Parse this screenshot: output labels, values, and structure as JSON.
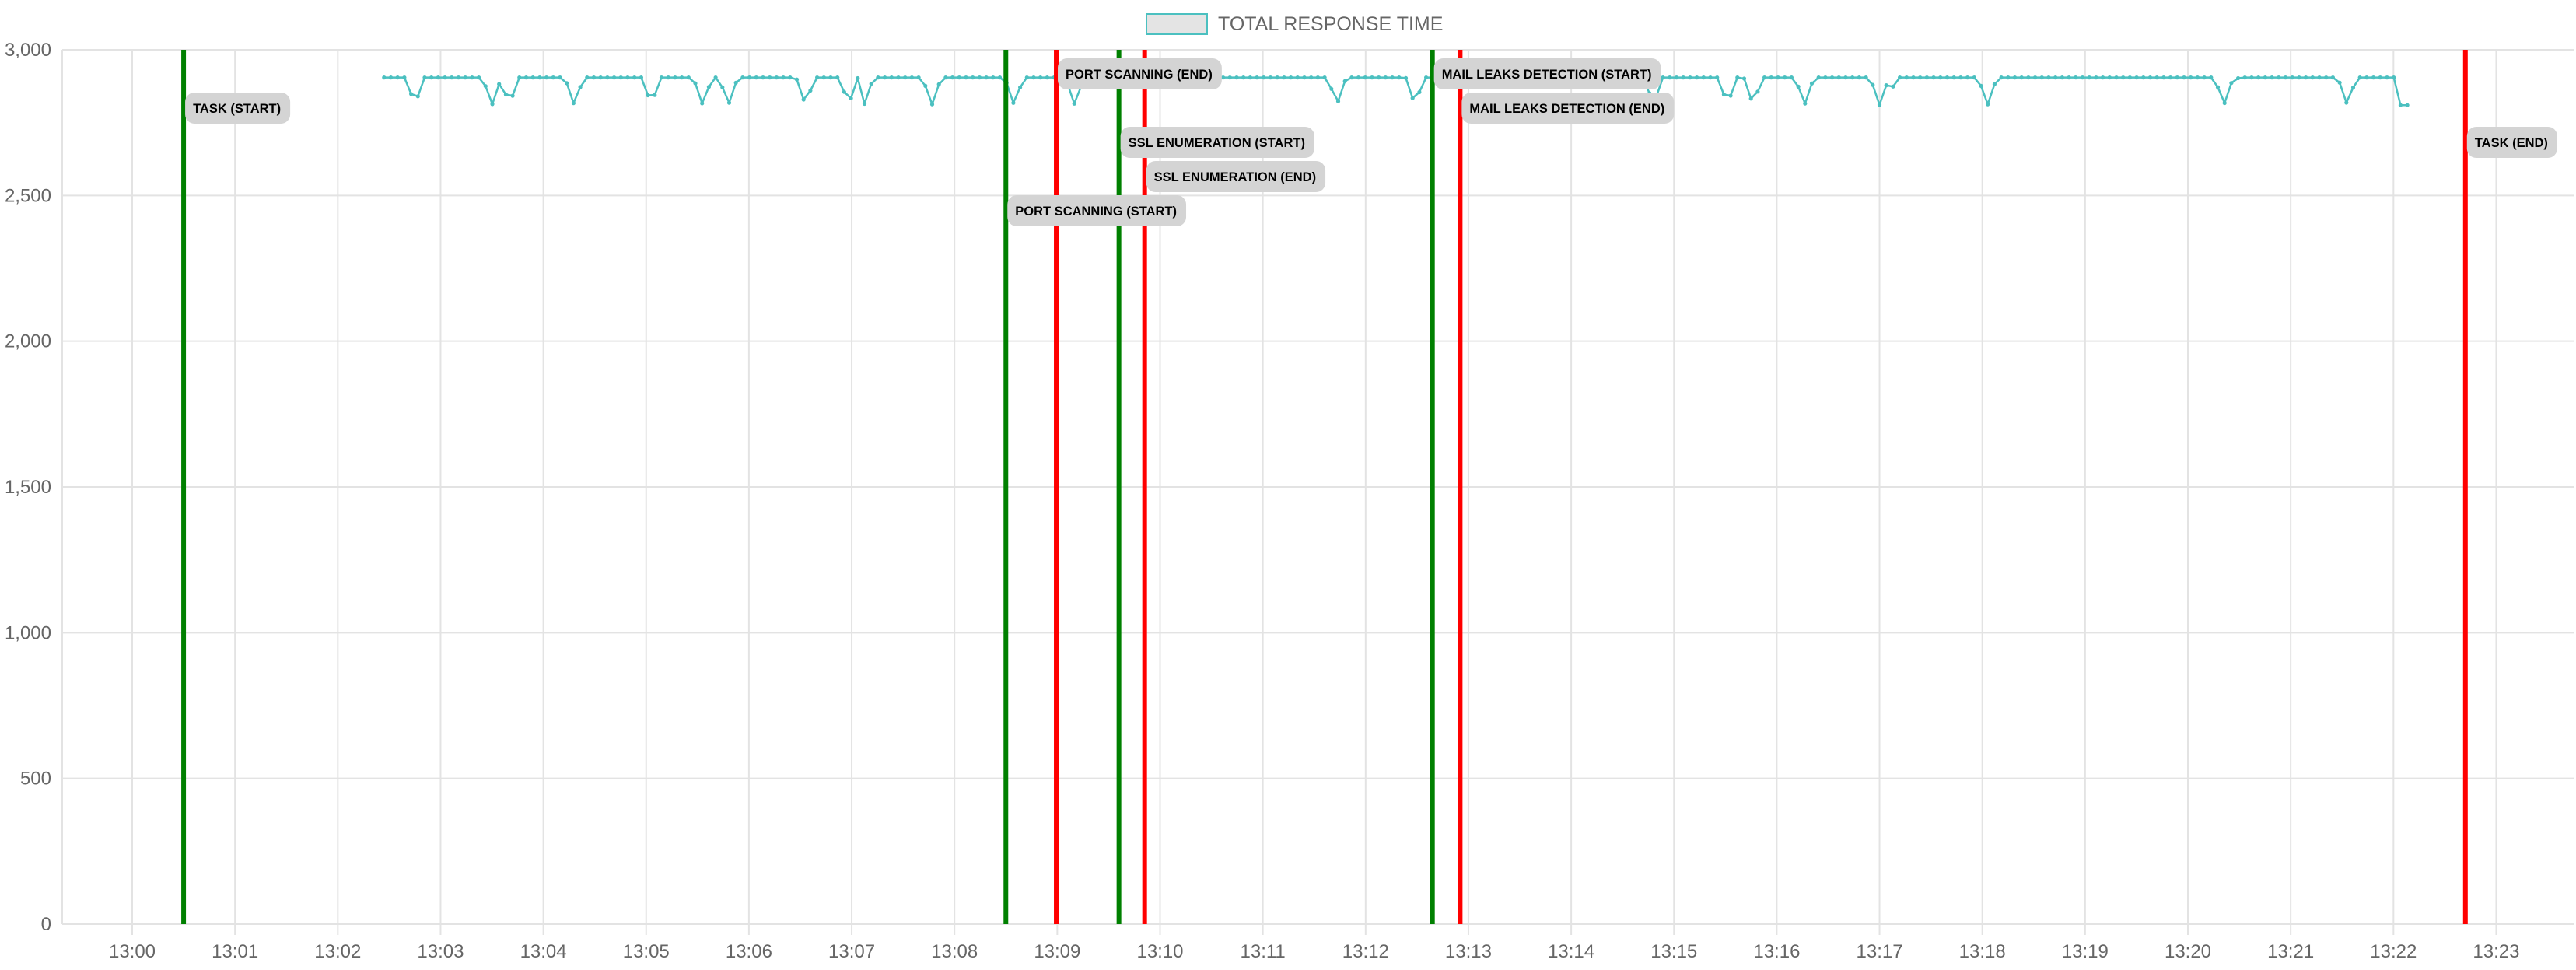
{
  "chart_data": {
    "type": "line",
    "x_unit": "time (HH:MM)",
    "xlim": [
      "12:59.4",
      "13:23.8"
    ],
    "ylim": [
      0,
      3000
    ],
    "grid": true,
    "legend_position": "top-center",
    "y_ticks": [
      0,
      500,
      1000,
      1500,
      2000,
      2500,
      3000
    ],
    "y_tick_labels": [
      "0",
      "500",
      "1,000",
      "1,500",
      "2,000",
      "2,500",
      "3,000"
    ],
    "x_ticks": [
      "13:00",
      "13:01",
      "13:02",
      "13:03",
      "13:04",
      "13:05",
      "13:06",
      "13:07",
      "13:08",
      "13:09",
      "13:10",
      "13:11",
      "13:12",
      "13:13",
      "13:14",
      "13:15",
      "13:16",
      "13:17",
      "13:18",
      "13:19",
      "13:20",
      "13:21",
      "13:22",
      "13:23"
    ],
    "series": [
      {
        "name": "TOTAL RESPONSE TIME",
        "color": "#4bc0c0",
        "legend_fill": "#e4e4e4",
        "x_start": "13:02.45",
        "x_end": "13:22.15",
        "baseline": 2905,
        "dip_value": 2810,
        "dip_times": [
          "13:02.75",
          "13:03.50",
          "13:03.67",
          "13:04.30",
          "13:05.05",
          "13:05.55",
          "13:05.80",
          "13:06.55",
          "13:06.97",
          "13:07.12",
          "13:07.78",
          "13:07.82",
          "13:08.58",
          "13:09.17",
          "13:11.72",
          "13:12.48",
          "13:14.80",
          "13:15.52",
          "13:15.77",
          "13:16.27",
          "13:16.30",
          "13:17.00",
          "13:17.07",
          "13:18.05",
          "13:20.35",
          "13:20.40",
          "13:21.55"
        ],
        "tail_value": 2810,
        "tail_start": "13:22.02"
      }
    ],
    "annotations": [
      {
        "label": "TASK (START)",
        "time": "13:00.50",
        "kind": "start",
        "color": "#008000"
      },
      {
        "label": "PORT SCANNING (START)",
        "time": "13:08.50",
        "kind": "start",
        "color": "#008000"
      },
      {
        "label": "PORT SCANNING (END)",
        "time": "13:08.99",
        "kind": "end",
        "color": "#ff0000"
      },
      {
        "label": "SSL ENUMERATION (START)",
        "time": "13:09.60",
        "kind": "start",
        "color": "#008000"
      },
      {
        "label": "SSL ENUMERATION (END)",
        "time": "13:09.85",
        "kind": "end",
        "color": "#ff0000"
      },
      {
        "label": "MAIL LEAKS DETECTION (START)",
        "time": "13:12.65",
        "kind": "start",
        "color": "#008000"
      },
      {
        "label": "MAIL LEAKS DETECTION (END)",
        "time": "13:12.92",
        "kind": "end",
        "color": "#ff0000"
      },
      {
        "label": "TASK (END)",
        "time": "13:22.70",
        "kind": "end",
        "color": "#ff0000"
      }
    ]
  }
}
